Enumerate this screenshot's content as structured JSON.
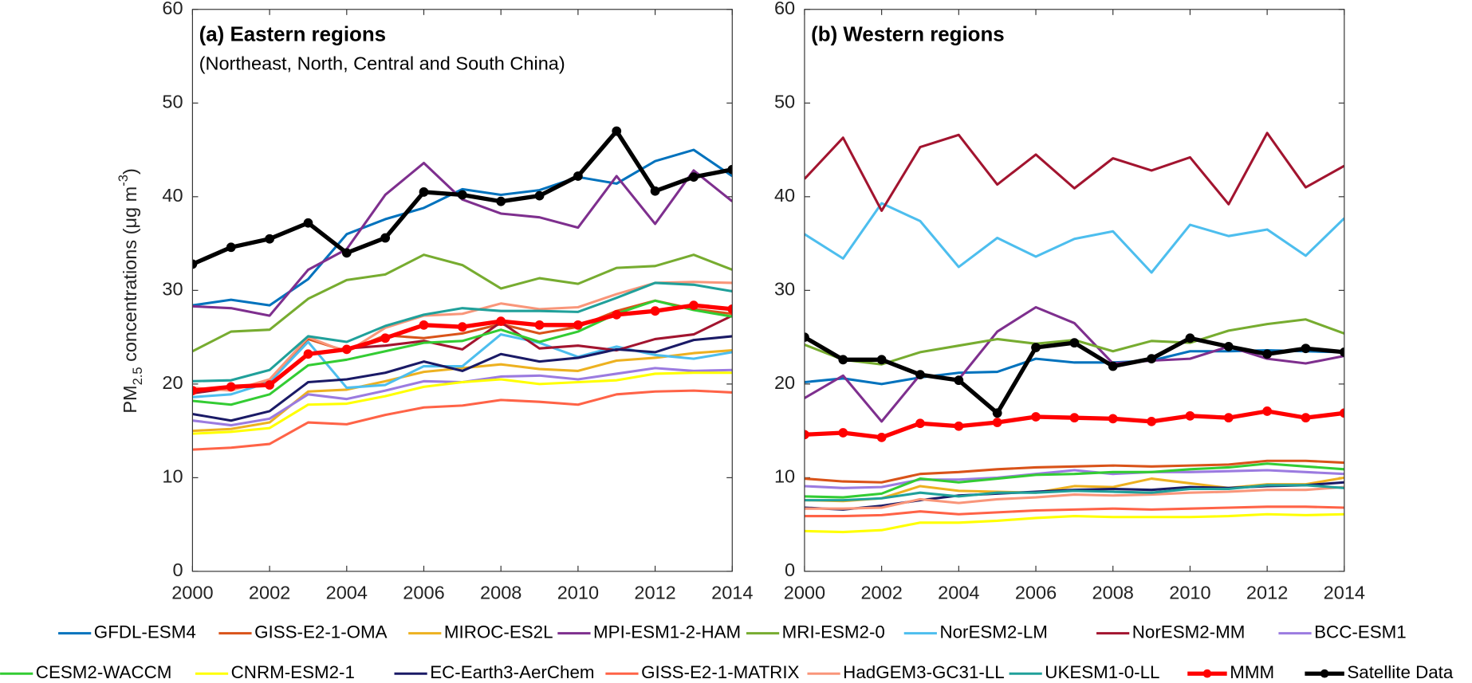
{
  "chart_data": [
    {
      "type": "line",
      "title": "(a) Eastern regions",
      "subtitle": "(Northeast, North, Central and South China)",
      "ylabel": {
        "base": "PM",
        "sub": "2.5",
        "text": " concentrations (μg m",
        "sup": "-3",
        "end": ")"
      },
      "x": [
        2000,
        2001,
        2002,
        2003,
        2004,
        2005,
        2006,
        2007,
        2008,
        2009,
        2010,
        2011,
        2012,
        2013,
        2014
      ],
      "xlim": [
        2000,
        2014
      ],
      "xticks": [
        2000,
        2002,
        2004,
        2006,
        2008,
        2010,
        2012,
        2014
      ],
      "ylim": [
        0,
        60
      ],
      "yticks": [
        0,
        10,
        20,
        30,
        40,
        50,
        60
      ],
      "series": [
        {
          "name": "GFDL-ESM4",
          "color": "#0072BD",
          "values": [
            28.4,
            29.0,
            28.4,
            31.2,
            36.0,
            37.6,
            38.8,
            40.8,
            40.2,
            40.7,
            42.1,
            41.4,
            43.8,
            45.0,
            42.2
          ]
        },
        {
          "name": "GISS-E2-1-OMA",
          "color": "#D95319",
          "values": [
            19.1,
            19.5,
            20.2,
            24.8,
            23.5,
            25.2,
            24.9,
            25.4,
            26.4,
            25.4,
            26.1,
            27.8,
            28.9,
            28.0,
            27.5
          ]
        },
        {
          "name": "MIROC-ES2L",
          "color": "#EDB120",
          "values": [
            15.0,
            15.2,
            15.9,
            19.2,
            19.4,
            20.3,
            21.3,
            21.7,
            22.1,
            21.6,
            21.4,
            22.5,
            22.8,
            23.3,
            23.6
          ]
        },
        {
          "name": "MPI-ESM1-2-HAM",
          "color": "#7E2F8E",
          "values": [
            28.3,
            28.1,
            27.3,
            32.2,
            34.4,
            40.2,
            43.6,
            39.7,
            38.2,
            37.8,
            36.7,
            42.2,
            37.1,
            42.8,
            39.5
          ]
        },
        {
          "name": "MRI-ESM2-0",
          "color": "#77AC30",
          "values": [
            23.5,
            25.6,
            25.8,
            29.1,
            31.1,
            31.7,
            33.8,
            32.7,
            30.2,
            31.3,
            30.7,
            32.4,
            32.6,
            33.8,
            32.2
          ]
        },
        {
          "name": "NorESM2-LM",
          "color": "#4DBEEE",
          "values": [
            18.6,
            18.9,
            20.2,
            24.5,
            19.6,
            19.9,
            21.9,
            21.9,
            25.3,
            24.4,
            22.9,
            24.0,
            23.1,
            22.7,
            23.4
          ]
        },
        {
          "name": "NorESM2-MM",
          "color": "#A2142F",
          "values": [
            19.0,
            19.6,
            20.0,
            23.1,
            23.8,
            24.1,
            24.6,
            23.7,
            26.6,
            23.8,
            24.1,
            23.6,
            24.8,
            25.3,
            27.3
          ]
        },
        {
          "name": "BCC-ESM1",
          "color": "#9B7BE0",
          "values": [
            16.1,
            15.6,
            16.3,
            18.9,
            18.4,
            19.3,
            20.3,
            20.2,
            20.8,
            20.9,
            20.5,
            21.1,
            21.7,
            21.4,
            21.5
          ]
        },
        {
          "name": "CESM2-WACCM",
          "color": "#33CC33",
          "values": [
            18.2,
            17.8,
            18.9,
            22.0,
            22.6,
            23.5,
            24.4,
            24.6,
            25.8,
            24.5,
            25.6,
            27.5,
            28.9,
            27.9,
            27.2
          ]
        },
        {
          "name": "CNRM-ESM2-1",
          "color": "#FFFF00",
          "values": [
            14.7,
            14.9,
            15.3,
            17.8,
            17.9,
            18.7,
            19.7,
            20.2,
            20.5,
            20.0,
            20.2,
            20.4,
            21.1,
            21.2,
            21.2
          ]
        },
        {
          "name": "EC-Earth3-AerChem",
          "color": "#1A1A66",
          "values": [
            16.8,
            16.1,
            17.1,
            20.2,
            20.5,
            21.2,
            22.4,
            21.4,
            23.2,
            22.4,
            22.8,
            23.7,
            23.4,
            24.7,
            25.1
          ]
        },
        {
          "name": "GISS-E2-1-MATRIX",
          "color": "#FF6347",
          "values": [
            13.0,
            13.2,
            13.6,
            15.9,
            15.7,
            16.7,
            17.5,
            17.7,
            18.3,
            18.1,
            17.8,
            18.9,
            19.2,
            19.3,
            19.1
          ]
        },
        {
          "name": "HadGEM3-GC31-LL",
          "color": "#F9967A",
          "values": [
            19.6,
            19.3,
            20.5,
            25.0,
            23.4,
            26.0,
            27.3,
            27.5,
            28.6,
            28.0,
            28.2,
            29.6,
            30.8,
            30.9,
            30.8
          ]
        },
        {
          "name": "UKESM1-0-LL",
          "color": "#20A09A",
          "values": [
            20.3,
            20.4,
            21.5,
            25.1,
            24.5,
            26.2,
            27.4,
            28.1,
            27.8,
            27.8,
            27.7,
            29.2,
            30.8,
            30.6,
            29.9
          ]
        },
        {
          "name": "MMM",
          "color": "#FF0000",
          "marker": "o",
          "values": [
            19.3,
            19.7,
            19.9,
            23.2,
            23.7,
            24.9,
            26.3,
            26.1,
            26.7,
            26.3,
            26.3,
            27.4,
            27.8,
            28.4,
            28.0
          ]
        },
        {
          "name": "Satellite Data",
          "color": "#000000",
          "marker": "o",
          "values": [
            32.8,
            34.6,
            35.5,
            37.2,
            34.0,
            35.6,
            40.5,
            40.2,
            39.5,
            40.1,
            42.2,
            47.0,
            40.6,
            42.1,
            42.9
          ]
        }
      ]
    },
    {
      "type": "line",
      "title": "(b) Western regions",
      "x": [
        2000,
        2001,
        2002,
        2003,
        2004,
        2005,
        2006,
        2007,
        2008,
        2009,
        2010,
        2011,
        2012,
        2013,
        2014
      ],
      "xlim": [
        2000,
        2014
      ],
      "xticks": [
        2000,
        2002,
        2004,
        2006,
        2008,
        2010,
        2012,
        2014
      ],
      "ylim": [
        0,
        60
      ],
      "yticks": [
        0,
        10,
        20,
        30,
        40,
        50,
        60
      ],
      "series": [
        {
          "name": "GFDL-ESM4",
          "color": "#0072BD",
          "values": [
            20.2,
            20.6,
            20.0,
            20.7,
            21.2,
            21.3,
            22.7,
            22.3,
            22.3,
            22.5,
            23.5,
            23.5,
            23.6,
            23.5,
            23.4
          ]
        },
        {
          "name": "GISS-E2-1-OMA",
          "color": "#D95319",
          "values": [
            9.9,
            9.6,
            9.5,
            10.4,
            10.6,
            10.9,
            11.1,
            11.2,
            11.3,
            11.2,
            11.3,
            11.4,
            11.8,
            11.8,
            11.6
          ]
        },
        {
          "name": "MIROC-ES2L",
          "color": "#EDB120",
          "values": [
            7.6,
            7.5,
            7.8,
            9.1,
            8.6,
            8.5,
            8.4,
            9.1,
            9.0,
            9.9,
            9.4,
            8.9,
            9.3,
            9.3,
            10.0
          ]
        },
        {
          "name": "MPI-ESM1-2-HAM",
          "color": "#7E2F8E",
          "values": [
            18.5,
            20.9,
            16.0,
            21.0,
            20.5,
            25.6,
            28.2,
            26.5,
            22.2,
            22.5,
            22.7,
            24.0,
            22.7,
            22.2,
            23.0
          ]
        },
        {
          "name": "MRI-ESM2-0",
          "color": "#77AC30",
          "values": [
            24.2,
            22.6,
            22.1,
            23.4,
            24.1,
            24.8,
            24.3,
            24.7,
            23.5,
            24.6,
            24.4,
            25.7,
            26.4,
            26.9,
            25.4
          ]
        },
        {
          "name": "NorESM2-LM",
          "color": "#4DBEEE",
          "values": [
            36.0,
            33.4,
            39.3,
            37.4,
            32.5,
            35.6,
            33.6,
            35.5,
            36.3,
            31.9,
            37.0,
            35.8,
            36.5,
            33.7,
            37.7
          ]
        },
        {
          "name": "NorESM2-MM",
          "color": "#A2142F",
          "values": [
            41.9,
            46.3,
            38.5,
            45.3,
            46.6,
            41.3,
            44.5,
            40.9,
            44.1,
            42.8,
            44.2,
            39.2,
            46.8,
            41.0,
            43.3
          ]
        },
        {
          "name": "BCC-ESM1",
          "color": "#9B7BE0",
          "values": [
            9.1,
            8.9,
            9.0,
            9.8,
            9.8,
            10.0,
            10.4,
            10.8,
            10.4,
            10.6,
            10.6,
            10.7,
            10.8,
            10.6,
            10.4
          ]
        },
        {
          "name": "CESM2-WACCM",
          "color": "#33CC33",
          "values": [
            8.0,
            7.9,
            8.3,
            9.9,
            9.5,
            9.9,
            10.3,
            10.4,
            10.6,
            10.6,
            10.9,
            11.1,
            11.5,
            11.2,
            10.9
          ]
        },
        {
          "name": "CNRM-ESM2-1",
          "color": "#FFFF00",
          "values": [
            4.3,
            4.2,
            4.4,
            5.2,
            5.2,
            5.4,
            5.7,
            5.9,
            5.8,
            5.8,
            5.8,
            5.9,
            6.1,
            6.0,
            6.1
          ]
        },
        {
          "name": "EC-Earth3-AerChem",
          "color": "#1A1A66",
          "values": [
            6.8,
            6.6,
            7.0,
            7.6,
            8.1,
            8.3,
            8.5,
            8.7,
            8.8,
            8.7,
            9.0,
            8.9,
            9.1,
            9.2,
            9.5
          ]
        },
        {
          "name": "GISS-E2-1-MATRIX",
          "color": "#FF6347",
          "values": [
            5.9,
            5.9,
            6.0,
            6.4,
            6.1,
            6.3,
            6.5,
            6.6,
            6.7,
            6.6,
            6.7,
            6.8,
            6.9,
            6.9,
            6.8
          ]
        },
        {
          "name": "HadGEM3-GC31-LL",
          "color": "#F9967A",
          "values": [
            6.7,
            6.7,
            6.8,
            7.7,
            7.3,
            7.7,
            7.9,
            8.2,
            8.1,
            8.2,
            8.4,
            8.5,
            8.7,
            8.7,
            9.0
          ]
        },
        {
          "name": "UKESM1-0-LL",
          "color": "#20A09A",
          "values": [
            7.6,
            7.6,
            7.8,
            8.4,
            8.0,
            8.4,
            8.4,
            8.6,
            8.5,
            8.4,
            8.8,
            8.8,
            9.2,
            9.2,
            8.9
          ]
        },
        {
          "name": "MMM",
          "color": "#FF0000",
          "marker": "o",
          "values": [
            14.6,
            14.8,
            14.3,
            15.8,
            15.5,
            15.9,
            16.5,
            16.4,
            16.3,
            16.0,
            16.6,
            16.4,
            17.1,
            16.4,
            16.9
          ]
        },
        {
          "name": "Satellite Data",
          "color": "#000000",
          "marker": "o",
          "values": [
            25.0,
            22.6,
            22.6,
            21.0,
            20.4,
            16.9,
            23.9,
            24.4,
            21.9,
            22.7,
            24.9,
            24.0,
            23.2,
            23.8,
            23.4
          ]
        }
      ]
    }
  ]
}
